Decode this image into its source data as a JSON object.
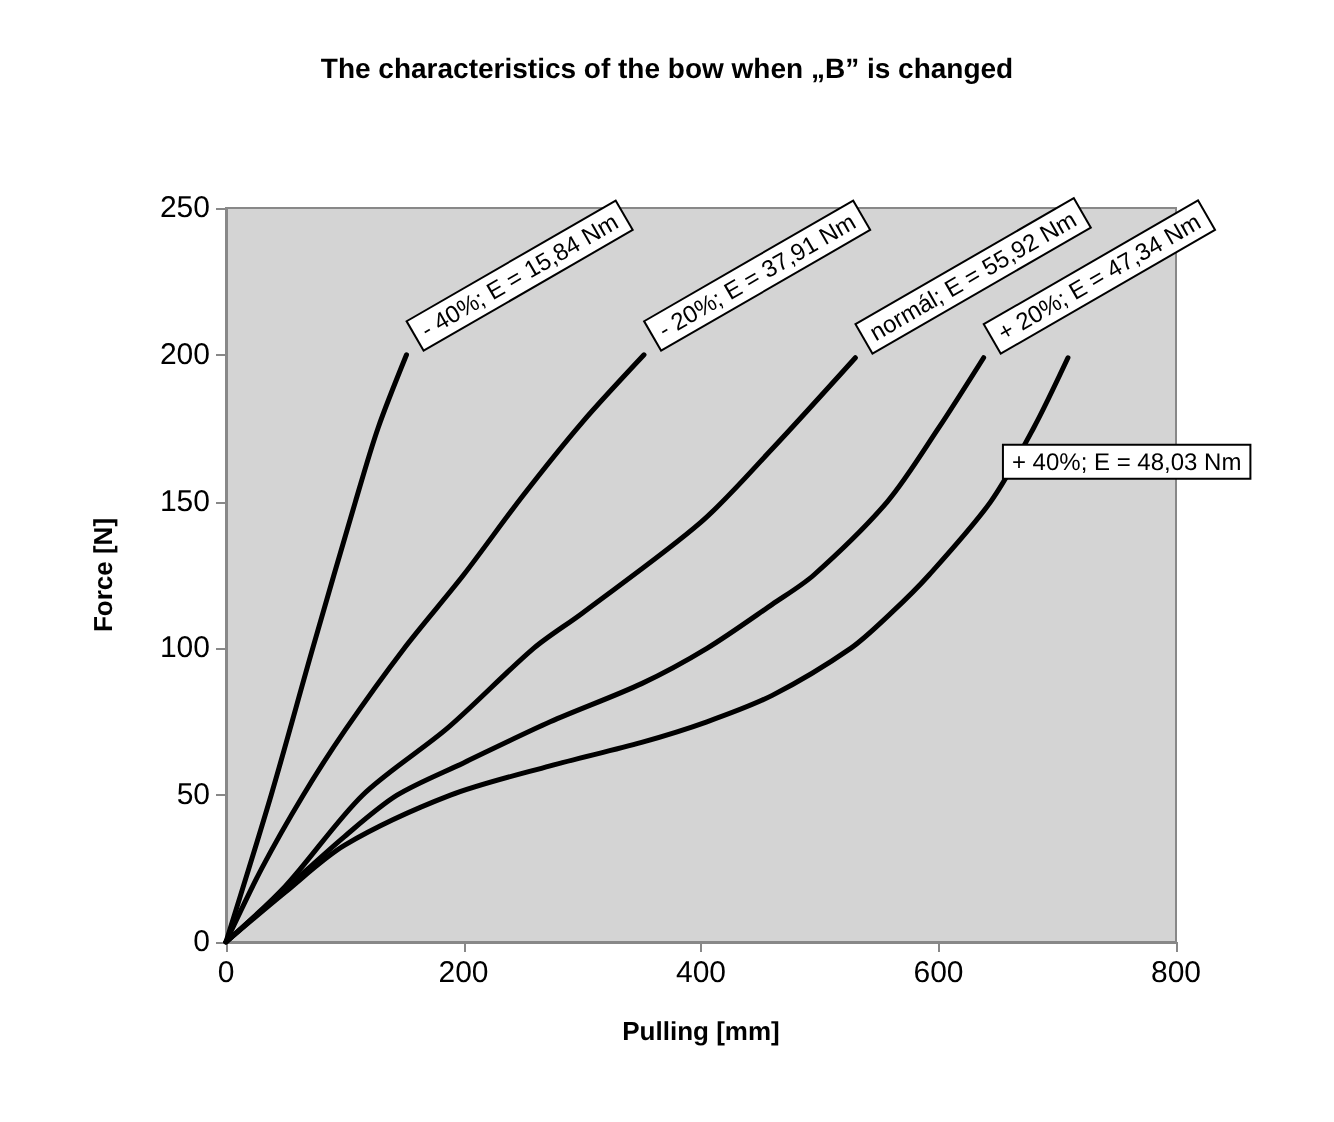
{
  "chart_data": {
    "type": "line",
    "title": "The characteristics of the bow when „B” is changed",
    "xlabel": "Pulling [mm]",
    "ylabel": "Force [N]",
    "xlim": [
      0,
      800
    ],
    "xticks": [
      0,
      200,
      400,
      600,
      800
    ],
    "ylim": [
      0,
      250
    ],
    "yticks": [
      0,
      50,
      100,
      150,
      200,
      250
    ],
    "grid": false,
    "legend": false,
    "marker": "none",
    "line_style": "solid",
    "series": [
      {
        "name": "- 40%; E = 15,84 Nm",
        "color": "#000000",
        "x": [
          0,
          38,
          73,
          109,
          128,
          152
        ],
        "values": [
          0,
          50,
          100,
          150,
          175,
          200
        ]
      },
      {
        "name": "- 20%; E = 37,91 Nm",
        "color": "#000000",
        "x": [
          0,
          30,
          65,
          100,
          150,
          200,
          250,
          300,
          352
        ],
        "values": [
          0,
          25,
          50,
          72,
          100,
          125,
          152,
          177,
          200
        ]
      },
      {
        "name": "normál; E = 55,92 Nm",
        "color": "#000000",
        "x": [
          0,
          50,
          115,
          187,
          259,
          300,
          400,
          460,
          530
        ],
        "values": [
          0,
          19,
          50,
          73,
          100,
          112,
          143,
          168,
          199
        ]
      },
      {
        "name": "+ 20%; E = 47,34 Nm",
        "color": "#000000",
        "x": [
          0,
          50,
          100,
          144,
          200,
          273,
          350,
          405,
          460,
          495,
          557,
          600,
          638
        ],
        "values": [
          0,
          18,
          36,
          50,
          61,
          75,
          88,
          100,
          115,
          125,
          150,
          175,
          199
        ]
      },
      {
        "name": "+ 40%; E = 48,03 Nm",
        "color": "#000000",
        "x": [
          0,
          50,
          100,
          189,
          273,
          350,
          405,
          460,
          526,
          560,
          592,
          644,
          680,
          709
        ],
        "values": [
          0,
          17,
          33,
          50,
          60,
          68,
          75,
          84,
          100,
          112,
          125,
          150,
          175,
          199
        ]
      }
    ]
  }
}
